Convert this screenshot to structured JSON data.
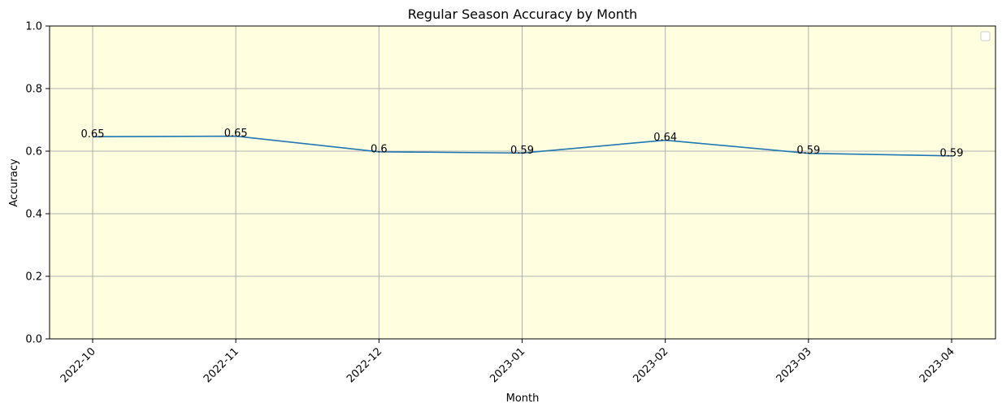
{
  "chart_data": {
    "type": "line",
    "title": "Regular Season Accuracy by Month",
    "xlabel": "Month",
    "ylabel": "Accuracy",
    "categories": [
      "2022-10",
      "2022-11",
      "2022-12",
      "2023-01",
      "2023-02",
      "2023-03",
      "2023-04"
    ],
    "series": [
      {
        "values": [
          0.646,
          0.648,
          0.598,
          0.594,
          0.635,
          0.593,
          0.585
        ],
        "data_labels": [
          "0.65",
          "0.65",
          "0.6",
          "0.59",
          "0.64",
          "0.59",
          "0.59"
        ]
      }
    ],
    "ylim": [
      0,
      1.0
    ],
    "yticks": [
      "0.0",
      "0.2",
      "0.4",
      "0.6",
      "0.8",
      "1.0"
    ],
    "grid": true,
    "legend": "top-right",
    "colors": {
      "line": "#1f77b4",
      "plot_background": "#ffffe0",
      "grid": "#b0b0b0",
      "axes": "#000000"
    }
  }
}
